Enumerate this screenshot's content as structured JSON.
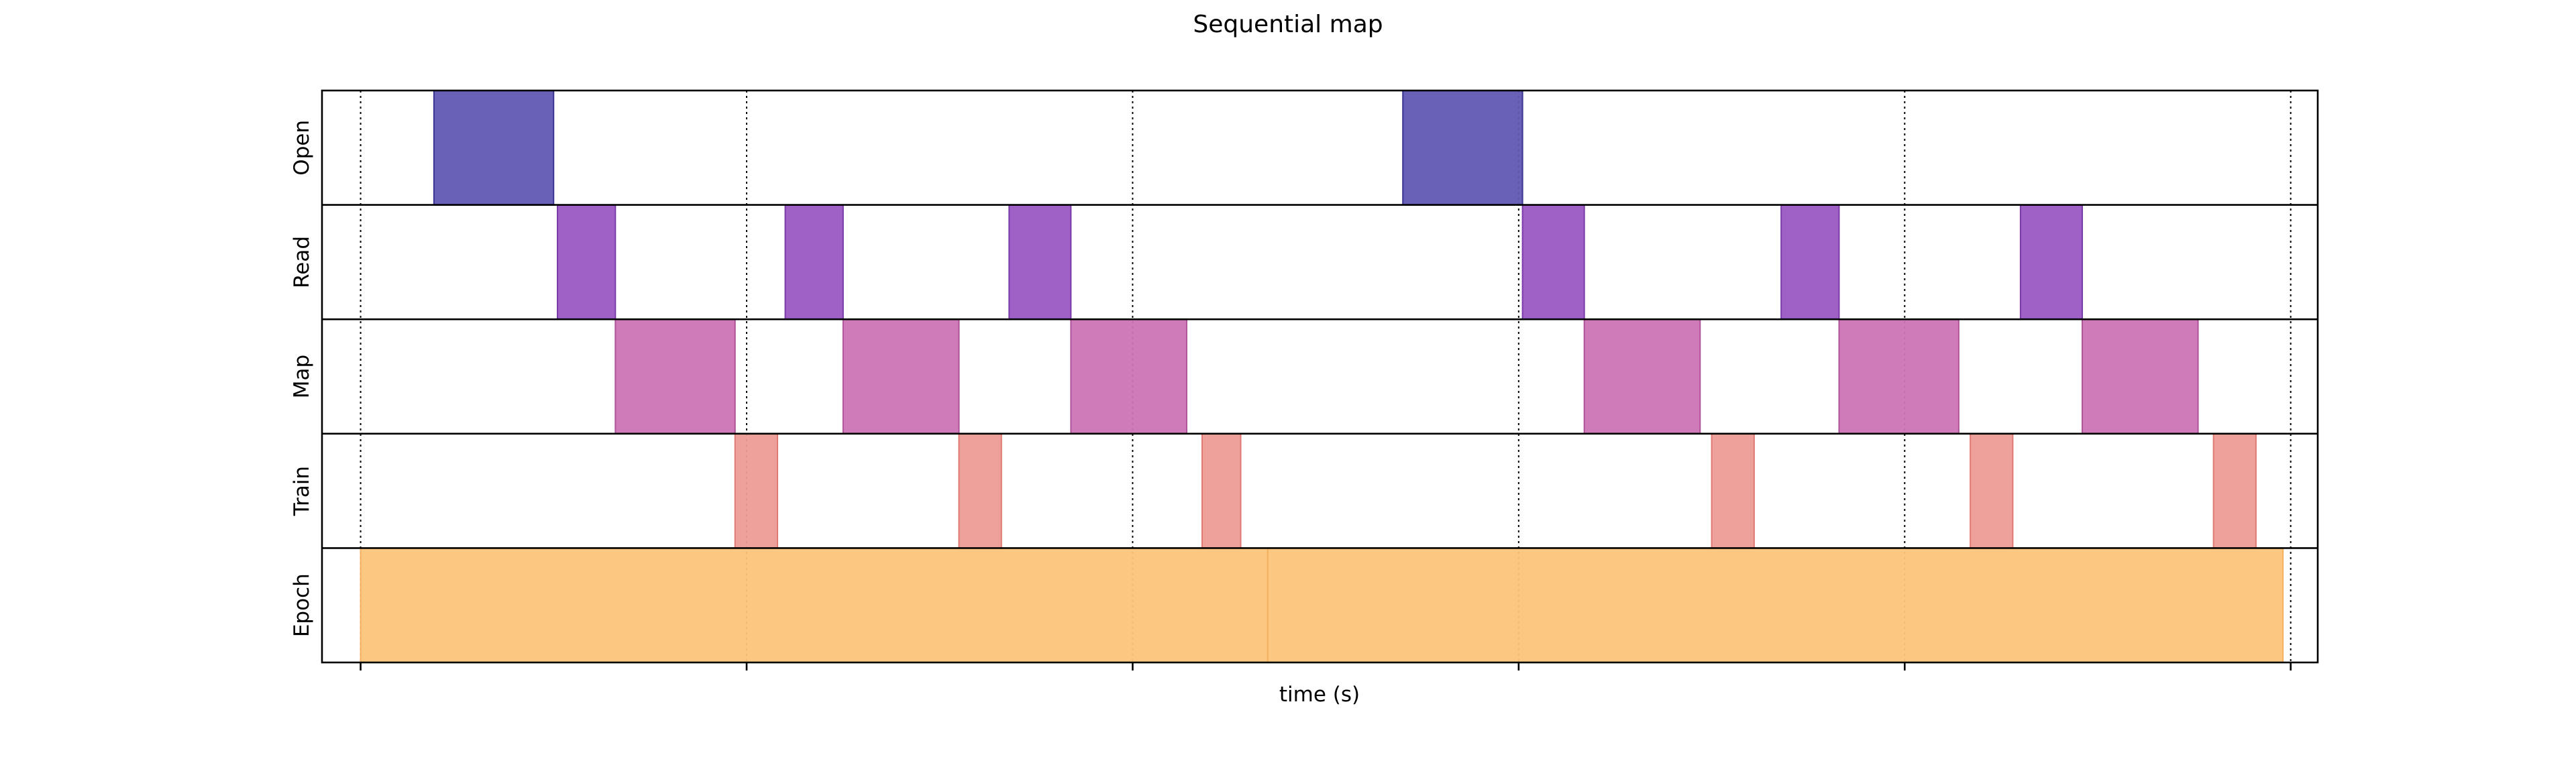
{
  "chart_data": {
    "type": "timeline",
    "title": "Sequential map",
    "xlabel": "time (s)",
    "ylabel": "",
    "xlim": [
      -0.1,
      5.07
    ],
    "x_ticks": [
      0,
      1,
      2,
      3,
      4,
      5
    ],
    "x_tick_labels_visible": false,
    "grid": "vertical dotted at x ticks",
    "rows": [
      {
        "label": "Open",
        "color": "#6059B3",
        "stroke": "#3B3490",
        "intervals": [
          [
            0.19,
            0.5
          ],
          [
            2.7,
            3.01
          ]
        ]
      },
      {
        "label": "Read",
        "color": "#9B59C4",
        "stroke": "#7A3BA8",
        "intervals": [
          [
            0.51,
            0.66
          ],
          [
            1.1,
            1.25
          ],
          [
            1.68,
            1.84
          ],
          [
            3.01,
            3.17
          ],
          [
            3.68,
            3.83
          ],
          [
            4.3,
            4.46
          ]
        ]
      },
      {
        "label": "Map",
        "color": "#CC73B5",
        "stroke": "#B0549A",
        "intervals": [
          [
            0.66,
            0.97
          ],
          [
            1.25,
            1.55
          ],
          [
            1.84,
            2.14
          ],
          [
            3.17,
            3.47
          ],
          [
            3.83,
            4.14
          ],
          [
            4.46,
            4.76
          ]
        ]
      },
      {
        "label": "Train",
        "color": "#ED9B96",
        "stroke": "#E07A74",
        "intervals": [
          [
            0.97,
            1.08
          ],
          [
            1.55,
            1.66
          ],
          [
            2.18,
            2.28
          ],
          [
            3.5,
            3.61
          ],
          [
            4.17,
            4.28
          ],
          [
            4.8,
            4.91
          ]
        ]
      },
      {
        "label": "Epoch",
        "color": "#FCC47A",
        "stroke": "#F5B160",
        "intervals": [
          [
            0.0,
            2.35
          ],
          [
            2.35,
            4.98
          ]
        ]
      }
    ]
  }
}
